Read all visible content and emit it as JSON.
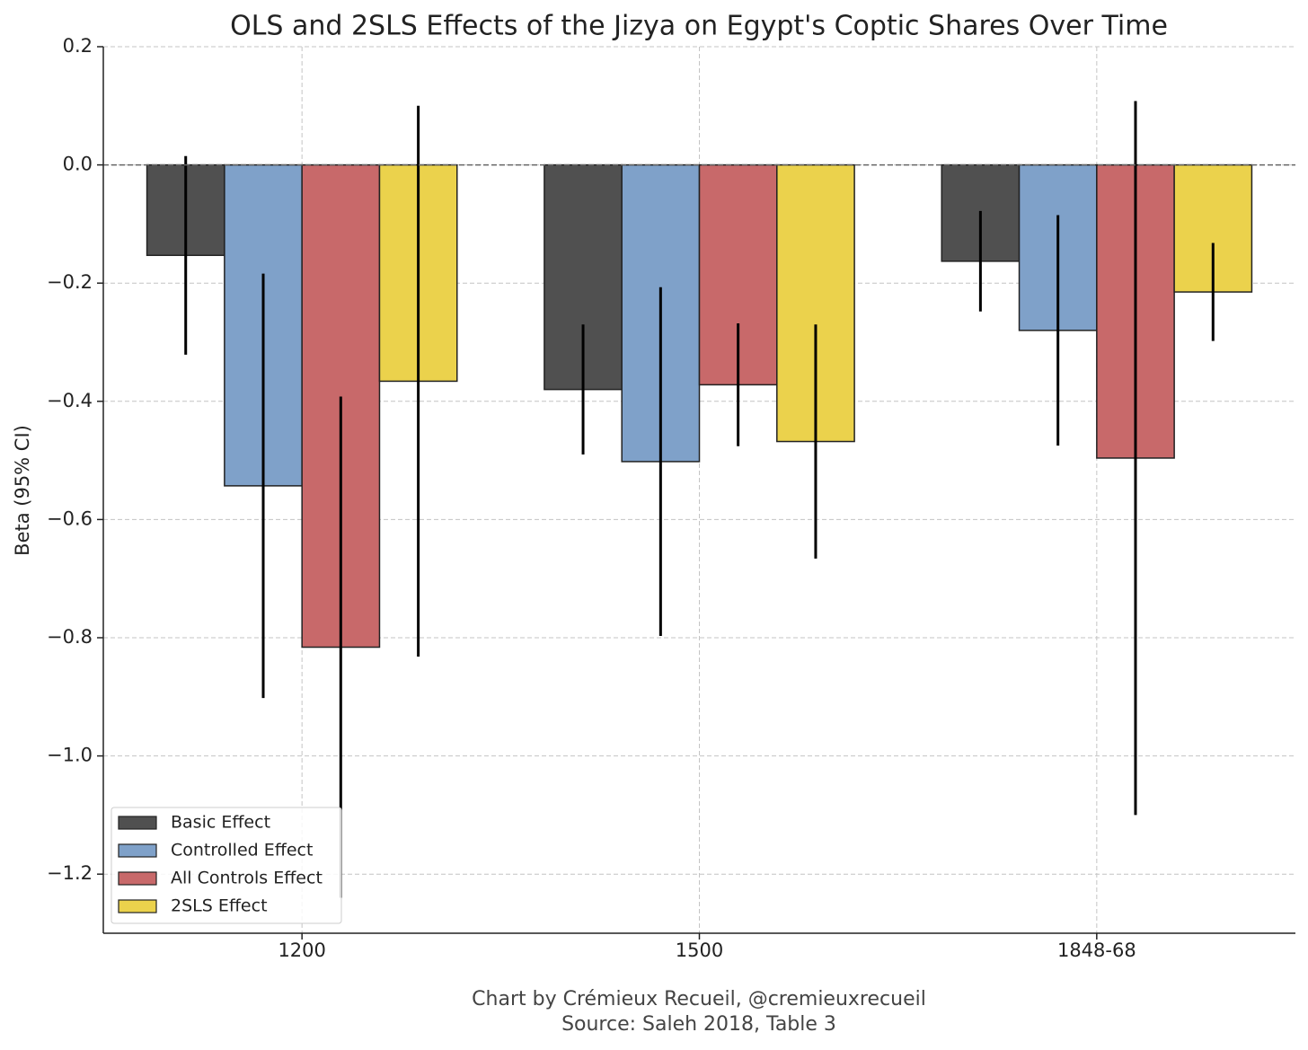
{
  "chart_data": {
    "type": "bar",
    "title": "OLS and 2SLS Effects of the Jizya on Egypt's Coptic Shares Over Time",
    "y_label": "Beta (95% CI)",
    "footer": [
      "Chart by Crémieux Recueil, @cremieuxrecueil",
      "Source: Saleh 2018, Table 3"
    ],
    "categories": [
      "1200",
      "1500",
      "1848-68"
    ],
    "series": [
      {
        "name": "Basic Effect",
        "color": "#505050",
        "values": [
          -0.153,
          -0.38,
          -0.163
        ],
        "error": [
          0.168,
          0.11,
          0.085
        ]
      },
      {
        "name": "Controlled Effect",
        "color": "#7fa1c9",
        "values": [
          -0.543,
          -0.502,
          -0.28
        ],
        "error": [
          0.359,
          0.295,
          0.195
        ]
      },
      {
        "name": "All Controls Effect",
        "color": "#c8696a",
        "values": [
          -0.816,
          -0.372,
          -0.496
        ],
        "error": [
          0.424,
          0.104,
          0.604
        ]
      },
      {
        "name": "2SLS Effect",
        "color": "#ebd24c",
        "values": [
          -0.366,
          -0.468,
          -0.215
        ],
        "error": [
          0.466,
          0.198,
          0.083
        ]
      }
    ],
    "ylim": [
      -1.3,
      0.2
    ],
    "yticks": [
      0.2,
      {
        "value": 0,
        "label": "0.0"
      },
      {
        "value": -0.2,
        "label": "−0.2"
      },
      {
        "value": -0.4,
        "label": "−0.4"
      },
      {
        "value": -0.6,
        "label": "−0.6"
      },
      {
        "value": -0.8,
        "label": "−0.8"
      },
      {
        "value": -1.0,
        "label": "−1.0"
      },
      {
        "value": -1.2,
        "label": "−1.2"
      }
    ],
    "hline": 0,
    "grid": true,
    "legend": "lower left"
  }
}
